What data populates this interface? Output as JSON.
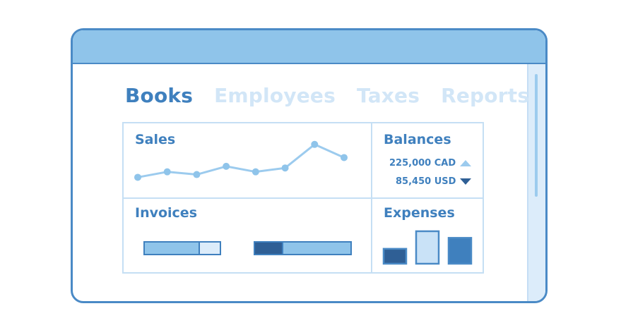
{
  "tabs": [
    {
      "label": "Books",
      "active": true
    },
    {
      "label": "Employees",
      "active": false
    },
    {
      "label": "Taxes",
      "active": false
    },
    {
      "label": "Reports",
      "active": false
    }
  ],
  "sales": {
    "title": "Sales",
    "points": [
      2,
      3,
      2.5,
      4,
      3,
      3.7,
      8,
      5.6
    ],
    "ymax": 9
  },
  "balances": {
    "title": "Balances",
    "items": [
      {
        "text": "225,000 CAD",
        "trend": "up"
      },
      {
        "text": "85,450 USD",
        "trend": "down"
      }
    ]
  },
  "invoices": {
    "title": "Invoices",
    "bars": [
      {
        "segments": [
          {
            "share": 0.72,
            "color": "#8fc4ea"
          },
          {
            "share": 0.28,
            "color": "#dcecfa"
          }
        ]
      },
      {
        "segments": [
          {
            "share": 0.28,
            "color": "#2f5f95"
          },
          {
            "share": 0.72,
            "color": "#8fc4ea"
          }
        ]
      }
    ]
  },
  "expenses": {
    "title": "Expenses",
    "values": [
      0.45,
      0.98,
      0.78
    ],
    "colors": [
      "#2f5f95",
      "#c9e2f7",
      "#3f80be"
    ]
  },
  "colors": {
    "accent": "#3f80be",
    "border": "#4a8ac6",
    "titlebar": "#8fc4ea",
    "grid": "#c5dff4"
  }
}
